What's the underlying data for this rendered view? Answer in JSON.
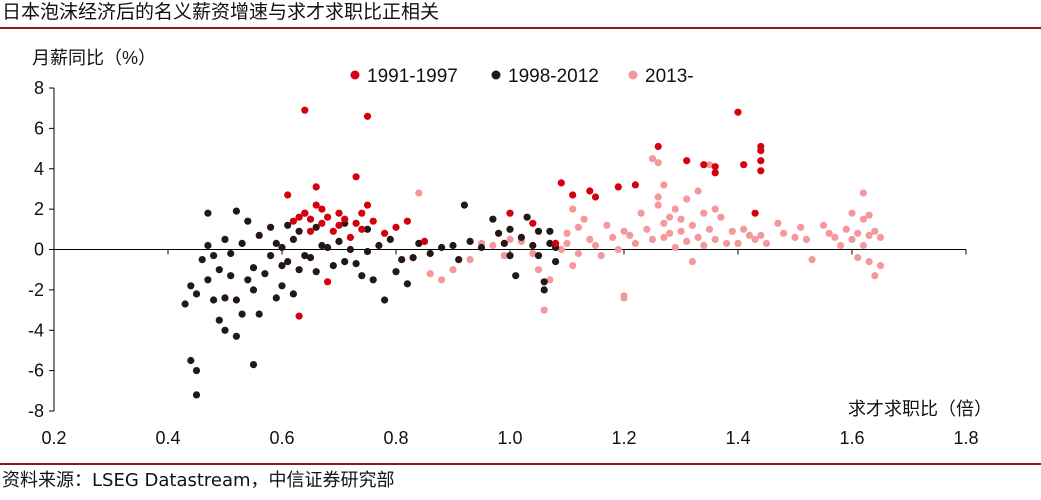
{
  "header": {
    "title": "日本泡沫经济后的名义薪资增速与求才求职比正相关"
  },
  "footer": {
    "source": "资料来源：LSEG Datastream，中信证券研究部"
  },
  "chart_data": {
    "type": "scatter",
    "title": "日本泡沫经济后的名义薪资增速与求才求职比正相关",
    "ylabel": "月薪同比（%）",
    "xlabel": "求才求职比（倍）",
    "xlim": [
      0.2,
      1.8
    ],
    "ylim": [
      -8,
      8
    ],
    "xticks": [
      "0.2",
      "0.4",
      "0.6",
      "0.8",
      "1.0",
      "1.2",
      "1.4",
      "1.6",
      "1.8"
    ],
    "yticks": [
      "8",
      "6",
      "4",
      "2",
      "0",
      "-2",
      "-4",
      "-6",
      "-8"
    ],
    "legend": [
      "1991-1997",
      "1998-2012",
      "2013-"
    ],
    "colors": {
      "1991-1997": "#d4000f",
      "1998-2012": "#231815",
      "2013-": "#f4989c"
    },
    "series": [
      {
        "name": "2013-",
        "points": [
          [
            0.84,
            2.8
          ],
          [
            0.86,
            -1.2
          ],
          [
            0.88,
            -1.5
          ],
          [
            0.9,
            -1.0
          ],
          [
            0.93,
            -0.5
          ],
          [
            0.95,
            0.3
          ],
          [
            0.97,
            0.2
          ],
          [
            0.99,
            -0.3
          ],
          [
            1.0,
            0.5
          ],
          [
            1.02,
            0.4
          ],
          [
            1.04,
            -0.2
          ],
          [
            1.05,
            -1.0
          ],
          [
            1.06,
            -3.0
          ],
          [
            1.07,
            -1.5
          ],
          [
            1.08,
            0.2
          ],
          [
            1.09,
            0.0
          ],
          [
            1.1,
            0.8
          ],
          [
            1.1,
            0.3
          ],
          [
            1.11,
            -0.8
          ],
          [
            1.11,
            2.0
          ],
          [
            1.12,
            1.1
          ],
          [
            1.12,
            -0.2
          ],
          [
            1.13,
            1.5
          ],
          [
            1.14,
            0.5
          ],
          [
            1.15,
            0.2
          ],
          [
            1.16,
            -0.3
          ],
          [
            1.17,
            1.2
          ],
          [
            1.18,
            0.6
          ],
          [
            1.19,
            0.0
          ],
          [
            1.2,
            -2.3
          ],
          [
            1.2,
            -2.4
          ],
          [
            1.2,
            0.9
          ],
          [
            1.21,
            0.7
          ],
          [
            1.22,
            0.3
          ],
          [
            1.23,
            1.8
          ],
          [
            1.24,
            1.0
          ],
          [
            1.25,
            0.5
          ],
          [
            1.25,
            4.5
          ],
          [
            1.26,
            4.3
          ],
          [
            1.26,
            2.6
          ],
          [
            1.26,
            2.2
          ],
          [
            1.27,
            1.3
          ],
          [
            1.27,
            0.6
          ],
          [
            1.27,
            3.2
          ],
          [
            1.28,
            0.8
          ],
          [
            1.28,
            1.6
          ],
          [
            1.29,
            2.0
          ],
          [
            1.29,
            0.1
          ],
          [
            1.3,
            0.9
          ],
          [
            1.3,
            1.5
          ],
          [
            1.31,
            0.4
          ],
          [
            1.31,
            2.5
          ],
          [
            1.32,
            1.2
          ],
          [
            1.32,
            -0.6
          ],
          [
            1.33,
            2.9
          ],
          [
            1.33,
            0.6
          ],
          [
            1.34,
            1.8
          ],
          [
            1.34,
            0.2
          ],
          [
            1.35,
            1.0
          ],
          [
            1.35,
            4.2
          ],
          [
            1.36,
            2.0
          ],
          [
            1.36,
            0.5
          ],
          [
            1.37,
            1.6
          ],
          [
            1.38,
            0.3
          ],
          [
            1.39,
            0.9
          ],
          [
            1.4,
            0.3
          ],
          [
            1.41,
            1.0
          ],
          [
            1.42,
            0.7
          ],
          [
            1.43,
            0.5
          ],
          [
            1.44,
            0.7
          ],
          [
            1.45,
            0.3
          ],
          [
            1.47,
            1.3
          ],
          [
            1.48,
            0.8
          ],
          [
            1.5,
            0.6
          ],
          [
            1.51,
            1.1
          ],
          [
            1.52,
            0.5
          ],
          [
            1.53,
            -0.5
          ],
          [
            1.55,
            1.2
          ],
          [
            1.56,
            0.8
          ],
          [
            1.57,
            0.6
          ],
          [
            1.58,
            0.2
          ],
          [
            1.59,
            1.0
          ],
          [
            1.6,
            1.8
          ],
          [
            1.6,
            0.5
          ],
          [
            1.61,
            -0.4
          ],
          [
            1.61,
            0.8
          ],
          [
            1.62,
            1.5
          ],
          [
            1.62,
            0.2
          ],
          [
            1.62,
            2.8
          ],
          [
            1.63,
            -0.6
          ],
          [
            1.63,
            1.7
          ],
          [
            1.63,
            0.7
          ],
          [
            1.64,
            -1.3
          ],
          [
            1.64,
            0.9
          ],
          [
            1.65,
            0.6
          ],
          [
            1.65,
            -0.8
          ]
        ]
      },
      {
        "name": "1998-2012",
        "points": [
          [
            0.43,
            -2.7
          ],
          [
            0.44,
            -5.5
          ],
          [
            0.45,
            -6.0
          ],
          [
            0.45,
            -7.2
          ],
          [
            0.44,
            -1.8
          ],
          [
            0.45,
            -2.2
          ],
          [
            0.46,
            -0.5
          ],
          [
            0.47,
            -1.5
          ],
          [
            0.47,
            0.2
          ],
          [
            0.47,
            1.8
          ],
          [
            0.48,
            -0.3
          ],
          [
            0.48,
            -2.5
          ],
          [
            0.49,
            -3.5
          ],
          [
            0.49,
            -1.0
          ],
          [
            0.5,
            -2.4
          ],
          [
            0.5,
            0.5
          ],
          [
            0.5,
            -4.0
          ],
          [
            0.51,
            -1.3
          ],
          [
            0.51,
            -0.2
          ],
          [
            0.52,
            -2.5
          ],
          [
            0.52,
            -4.3
          ],
          [
            0.52,
            1.9
          ],
          [
            0.53,
            -3.2
          ],
          [
            0.53,
            0.3
          ],
          [
            0.54,
            -1.5
          ],
          [
            0.54,
            1.4
          ],
          [
            0.55,
            -0.9
          ],
          [
            0.55,
            -2.0
          ],
          [
            0.55,
            -5.7
          ],
          [
            0.56,
            0.7
          ],
          [
            0.56,
            -3.2
          ],
          [
            0.57,
            -1.2
          ],
          [
            0.58,
            -0.3
          ],
          [
            0.58,
            1.1
          ],
          [
            0.59,
            -2.4
          ],
          [
            0.59,
            0.3
          ],
          [
            0.6,
            -0.8
          ],
          [
            0.6,
            -1.8
          ],
          [
            0.6,
            0.1
          ],
          [
            0.61,
            1.2
          ],
          [
            0.61,
            -0.6
          ],
          [
            0.62,
            0.5
          ],
          [
            0.62,
            -2.2
          ],
          [
            0.63,
            0.9
          ],
          [
            0.63,
            -1.0
          ],
          [
            0.64,
            1.8
          ],
          [
            0.64,
            -0.3
          ],
          [
            0.65,
            -0.4
          ],
          [
            0.66,
            1.1
          ],
          [
            0.66,
            -1.1
          ],
          [
            0.67,
            0.2
          ],
          [
            0.68,
            0.1
          ],
          [
            0.69,
            -0.8
          ],
          [
            0.7,
            0.4
          ],
          [
            0.71,
            1.3
          ],
          [
            0.71,
            -0.6
          ],
          [
            0.72,
            0.0
          ],
          [
            0.73,
            -0.7
          ],
          [
            0.74,
            -1.3
          ],
          [
            0.75,
            1.0
          ],
          [
            0.75,
            -0.1
          ],
          [
            0.76,
            -1.5
          ],
          [
            0.77,
            0.2
          ],
          [
            0.78,
            -2.5
          ],
          [
            0.79,
            0.5
          ],
          [
            0.8,
            -1.1
          ],
          [
            0.81,
            -0.5
          ],
          [
            0.82,
            -1.7
          ],
          [
            0.83,
            -0.4
          ],
          [
            0.84,
            0.3
          ],
          [
            0.86,
            -0.2
          ],
          [
            0.88,
            0.1
          ],
          [
            0.9,
            0.2
          ],
          [
            0.91,
            -0.5
          ],
          [
            0.92,
            2.2
          ],
          [
            0.93,
            0.4
          ],
          [
            0.95,
            0.1
          ],
          [
            0.97,
            1.5
          ],
          [
            0.98,
            0.8
          ],
          [
            0.99,
            0.3
          ],
          [
            1.0,
            1.0
          ],
          [
            1.0,
            -0.3
          ],
          [
            1.01,
            -1.3
          ],
          [
            1.02,
            0.6
          ],
          [
            1.03,
            1.6
          ],
          [
            1.04,
            0.2
          ],
          [
            1.05,
            -0.3
          ],
          [
            1.05,
            0.9
          ],
          [
            1.06,
            -1.6
          ],
          [
            1.06,
            -2.0
          ],
          [
            1.07,
            0.3
          ],
          [
            1.07,
            0.9
          ],
          [
            1.08,
            -0.6
          ],
          [
            1.08,
            0.1
          ]
        ]
      },
      {
        "name": "1991-1997",
        "points": [
          [
            0.61,
            2.7
          ],
          [
            0.62,
            1.4
          ],
          [
            0.63,
            1.6
          ],
          [
            0.63,
            -3.3
          ],
          [
            0.64,
            6.9
          ],
          [
            0.64,
            1.8
          ],
          [
            0.65,
            1.5
          ],
          [
            0.65,
            0.9
          ],
          [
            0.66,
            2.2
          ],
          [
            0.66,
            3.1
          ],
          [
            0.67,
            2.0
          ],
          [
            0.67,
            1.3
          ],
          [
            0.68,
            1.6
          ],
          [
            0.68,
            -1.6
          ],
          [
            0.69,
            0.9
          ],
          [
            0.7,
            1.2
          ],
          [
            0.7,
            1.8
          ],
          [
            0.71,
            1.5
          ],
          [
            0.72,
            0.6
          ],
          [
            0.73,
            3.6
          ],
          [
            0.73,
            1.3
          ],
          [
            0.74,
            1.0
          ],
          [
            0.74,
            1.8
          ],
          [
            0.75,
            6.6
          ],
          [
            0.75,
            2.2
          ],
          [
            0.76,
            1.4
          ],
          [
            0.78,
            0.8
          ],
          [
            0.8,
            1.1
          ],
          [
            0.82,
            1.4
          ],
          [
            0.85,
            0.4
          ],
          [
            1.0,
            1.8
          ],
          [
            1.04,
            1.3
          ],
          [
            1.08,
            0.3
          ],
          [
            1.09,
            3.3
          ],
          [
            1.11,
            2.7
          ],
          [
            1.14,
            2.9
          ],
          [
            1.15,
            2.6
          ],
          [
            1.19,
            3.1
          ],
          [
            1.22,
            3.2
          ],
          [
            1.26,
            5.1
          ],
          [
            1.31,
            4.4
          ],
          [
            1.34,
            4.2
          ],
          [
            1.36,
            4.1
          ],
          [
            1.36,
            3.8
          ],
          [
            1.4,
            6.8
          ],
          [
            1.41,
            4.2
          ],
          [
            1.43,
            1.8
          ],
          [
            1.44,
            5.1
          ],
          [
            1.44,
            4.9
          ],
          [
            1.44,
            4.4
          ],
          [
            1.44,
            3.9
          ]
        ]
      }
    ]
  }
}
